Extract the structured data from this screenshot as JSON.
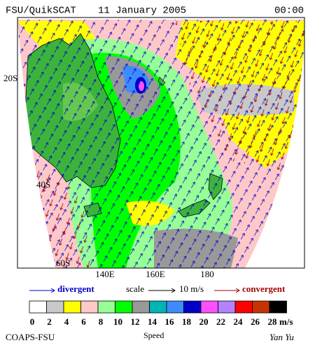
{
  "header": {
    "product": "FSU/QuikSCAT",
    "date": "11 January 2005",
    "time": "00:00"
  },
  "map": {
    "lat_labels": [
      "20S",
      "40S",
      "60S"
    ],
    "lon_labels": [
      "140E",
      "160E",
      "180"
    ]
  },
  "legend": {
    "divergent": "divergent",
    "scale": "scale",
    "scale_value": "10 m/s",
    "convergent": "convergent"
  },
  "colorbar": {
    "title": "Speed",
    "unit": "m/s",
    "ticks": [
      0,
      2,
      4,
      6,
      8,
      10,
      12,
      14,
      16,
      18,
      20,
      22,
      24,
      26,
      28
    ],
    "colors": [
      "#ffffff",
      "#c8c8c8",
      "#ffff00",
      "#ffc8c8",
      "#96ff96",
      "#00ff00",
      "#999999",
      "#00b4b4",
      "#3c8cff",
      "#0000c8",
      "#ff50ff",
      "#b482ff",
      "#ff0000",
      "#c83200",
      "#000000"
    ]
  },
  "footer": {
    "left": "COAPS-FSU",
    "right": "Yan Yu"
  }
}
